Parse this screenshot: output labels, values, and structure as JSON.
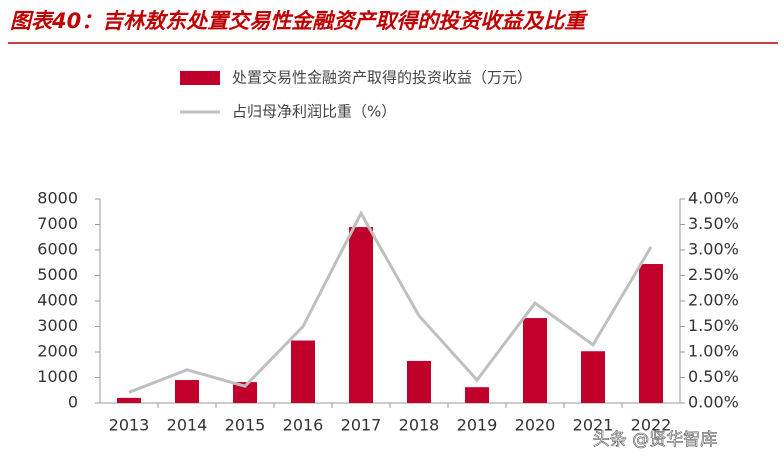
{
  "chart_data": {
    "type": "bar-line",
    "title": "图表40：吉林敖东处置交易性金融资产取得的投资收益及比重",
    "categories": [
      "2013",
      "2014",
      "2015",
      "2016",
      "2017",
      "2018",
      "2019",
      "2020",
      "2021",
      "2022"
    ],
    "series": [
      {
        "name": "处置交易性金融资产取得的投资收益（万元）",
        "color": "#c0002a",
        "type": "bar",
        "values": [
          200,
          900,
          820,
          2450,
          6900,
          1650,
          620,
          3330,
          2030,
          5450
        ]
      },
      {
        "name": "占归母净利润比重（%）",
        "color": "#bfbfbf",
        "type": "line",
        "axis": "y2",
        "values": [
          0.21,
          0.65,
          0.33,
          1.5,
          3.72,
          1.71,
          0.45,
          1.96,
          1.14,
          3.06
        ]
      }
    ],
    "ylim": [
      0,
      8000
    ],
    "yticks": [
      0,
      1000,
      2000,
      3000,
      4000,
      5000,
      6000,
      7000,
      8000
    ],
    "y2lim": [
      0,
      4
    ],
    "y2ticks": [
      {
        "value": 0,
        "label": "0.00%"
      },
      {
        "value": 0.5,
        "label": "0.50%"
      },
      {
        "value": 1,
        "label": "1.00%"
      },
      {
        "value": 1.5,
        "label": "1.50%"
      },
      {
        "value": 2,
        "label": "2.00%"
      },
      {
        "value": 2.5,
        "label": "2.50%"
      },
      {
        "value": 3,
        "label": "3.00%"
      },
      {
        "value": 3.5,
        "label": "3.50%"
      },
      {
        "value": 4,
        "label": "4.00%"
      }
    ],
    "watermark": "头条 @贤华智库"
  }
}
